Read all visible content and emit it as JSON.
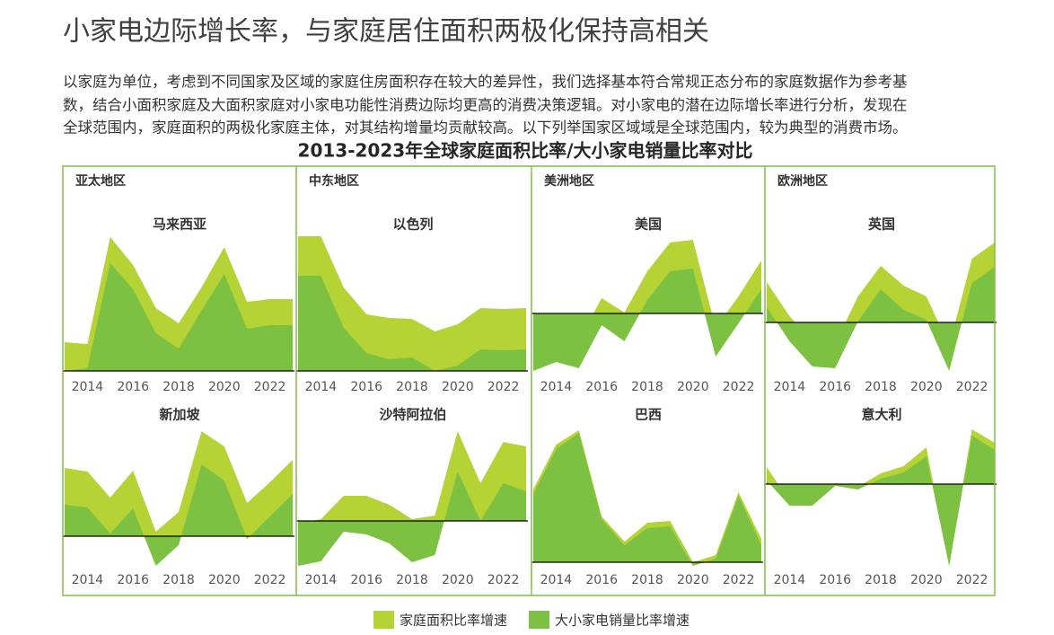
{
  "title": "小家电边际增长率，与家庭居住面积两极化保持高相关",
  "paragraph": [
    "以家庭为单位，考虑到不同国家及区域的家庭住房面积存在较大的差异性，我们选择基本符合常规正态分布的家庭数据作为参考基",
    "数，结合小面积家庭及大面积家庭对小家电功能性消费边际均更高的消费决策逻辑。对小家电的潜在边际增长率进行分析，发现在",
    "全球范围内，家庭面积的两极化家庭主体，对其结构增量均贡献较高。以下列举国家区域域是全球范围内，较为典型的消费市场。"
  ],
  "chart_title": "2013-2023年全球家庭面积比率/大小家电销量比率对比",
  "legend": [
    {
      "name": "家庭面积比率增速",
      "color": "#b5d334"
    },
    {
      "name": "大小家电销量比率增速",
      "color": "#7dc143"
    }
  ],
  "chart_data": [
    {
      "type": "area",
      "region": "亚太地区",
      "title": "马来西亚",
      "x": [
        2013,
        2014,
        2015,
        2016,
        2017,
        2018,
        2019,
        2020,
        2021,
        2022,
        2023
      ],
      "xlim": [
        2013,
        2023
      ],
      "xticks": [
        2014,
        2016,
        2018,
        2020,
        2022
      ],
      "ylim": [
        -0.2,
        15.8
      ],
      "series": [
        {
          "values": [
            3.2,
            3.0,
            14.9,
            11.8,
            7.0,
            5.3,
            9.3,
            13.8,
            7.7,
            8.0,
            8.0
          ]
        },
        {
          "values": [
            0,
            0.3,
            12.0,
            9.1,
            4.2,
            2.5,
            6.7,
            10.8,
            4.7,
            5.1,
            5.1
          ]
        }
      ]
    },
    {
      "type": "area",
      "region": "中东地区",
      "title": "以色列",
      "x": [
        2013,
        2014,
        2015,
        2016,
        2017,
        2018,
        2019,
        2020,
        2021,
        2022,
        2023
      ],
      "xlim": [
        2013,
        2023
      ],
      "xticks": [
        2014,
        2016,
        2018,
        2020,
        2022
      ],
      "ylim": [
        -0.2,
        15.8
      ],
      "series": [
        {
          "values": [
            15,
            15,
            9.3,
            6.3,
            5.9,
            5.8,
            4.4,
            5.2,
            7.0,
            6.9,
            7.0
          ]
        },
        {
          "values": [
            10.6,
            10.6,
            4.8,
            2.0,
            1.3,
            1.5,
            0,
            0.6,
            2.4,
            2.3,
            2.4
          ]
        }
      ]
    },
    {
      "type": "area",
      "region": "美洲地区",
      "title": "美国",
      "x": [
        2013,
        2014,
        2015,
        2016,
        2017,
        2018,
        2019,
        2020,
        2021,
        2022,
        2023
      ],
      "xlim": [
        2013,
        2023
      ],
      "xticks": [
        2014,
        2016,
        2018,
        2020,
        2022
      ],
      "ylim": [
        -6.6,
        9.4
      ],
      "series": [
        {
          "values": [
            -3.3,
            -2.3,
            -3.0,
            1.7,
            0.1,
            4.7,
            7.9,
            8.2,
            -1.6,
            1.9,
            5.9
          ]
        },
        {
          "values": [
            -6.4,
            -5.4,
            -6.1,
            -1.3,
            -3.1,
            1.5,
            4.7,
            5.0,
            -4.8,
            -1.1,
            2.7
          ]
        }
      ]
    },
    {
      "type": "area",
      "region": "欧洲地区",
      "title": "英国",
      "x": [
        2013,
        2014,
        2015,
        2016,
        2017,
        2018,
        2019,
        2020,
        2021,
        2022,
        2023
      ],
      "xlim": [
        2013,
        2023
      ],
      "xticks": [
        2014,
        2016,
        2018,
        2020,
        2022
      ],
      "ylim": [
        -5.6,
        10.4
      ],
      "series": [
        {
          "values": [
            4.5,
            0.7,
            -2.1,
            -2.4,
            2.9,
            6.3,
            4.1,
            2.9,
            -2.6,
            7.1,
            8.9
          ]
        },
        {
          "values": [
            1.7,
            -2.1,
            -4.9,
            -5.1,
            0.1,
            3.7,
            1.4,
            0.3,
            -5.4,
            4.4,
            6.2
          ]
        }
      ]
    },
    {
      "type": "area",
      "title": "新加坡",
      "x": [
        2013,
        2014,
        2015,
        2016,
        2017,
        2018,
        2019,
        2020,
        2021,
        2022,
        2023
      ],
      "xlim": [
        2013,
        2023
      ],
      "xticks": [
        2014,
        2016,
        2018,
        2020,
        2022
      ],
      "ylim": [
        -3.3,
        12.7
      ],
      "series": [
        {
          "values": [
            7.6,
            7.2,
            4.3,
            7.3,
            0.5,
            2.7,
            11.7,
            10.0,
            3.7,
            6.0,
            8.5
          ]
        },
        {
          "values": [
            3.5,
            3.2,
            0.3,
            3.1,
            -3.3,
            -1.0,
            8.0,
            6.2,
            -0.3,
            2.2,
            4.7
          ]
        }
      ]
    },
    {
      "type": "area",
      "title": "沙特阿拉伯",
      "x": [
        2013,
        2014,
        2015,
        2016,
        2017,
        2018,
        2019,
        2020,
        2021,
        2022,
        2023
      ],
      "xlim": [
        2013,
        2023
      ],
      "xticks": [
        2014,
        2016,
        2018,
        2020,
        2022
      ],
      "ylim": [
        -5.0,
        11.0
      ],
      "series": [
        {
          "values": [
            -0.3,
            0.2,
            2.8,
            2.8,
            1.8,
            0.2,
            0.6,
            10.0,
            4.2,
            8.8,
            8.3
          ]
        },
        {
          "values": [
            -5.0,
            -4.5,
            -1.2,
            -1.5,
            -2.5,
            -4.6,
            -3.8,
            5.5,
            0,
            4.2,
            3.3
          ]
        }
      ]
    },
    {
      "type": "area",
      "title": "巴西",
      "x": [
        2013,
        2014,
        2015,
        2016,
        2017,
        2018,
        2019,
        2020,
        2021,
        2022,
        2023
      ],
      "xlim": [
        2013,
        2023
      ],
      "xticks": [
        2014,
        2016,
        2018,
        2020,
        2022
      ],
      "ylim": [
        -0.4,
        15.6
      ],
      "series": [
        {
          "values": [
            8.1,
            13.1,
            14.7,
            5.1,
            2.3,
            4.4,
            4.6,
            0,
            0.8,
            7.8,
            2.6
          ]
        },
        {
          "values": [
            7.6,
            12.6,
            14.4,
            4.8,
            1.9,
            3.8,
            4.0,
            -0.4,
            0.4,
            7.4,
            1.9
          ]
        }
      ]
    },
    {
      "type": "area",
      "title": "意大利",
      "x": [
        2013,
        2014,
        2015,
        2016,
        2017,
        2018,
        2019,
        2020,
        2021,
        2022,
        2023
      ],
      "xlim": [
        2013,
        2023
      ],
      "xticks": [
        2014,
        2016,
        2018,
        2020,
        2022
      ],
      "ylim": [
        -9.1,
        6.9
      ],
      "series": [
        {
          "values": [
            1.9,
            -1.9,
            -2.1,
            0.1,
            -0.3,
            1.2,
            2.0,
            4.1,
            -9.1,
            6.1,
            4.6
          ]
        },
        {
          "values": [
            0.4,
            -2.4,
            -2.4,
            -0.2,
            -0.6,
            0.6,
            1.3,
            3.1,
            -9.1,
            5.4,
            3.8
          ]
        }
      ]
    }
  ]
}
